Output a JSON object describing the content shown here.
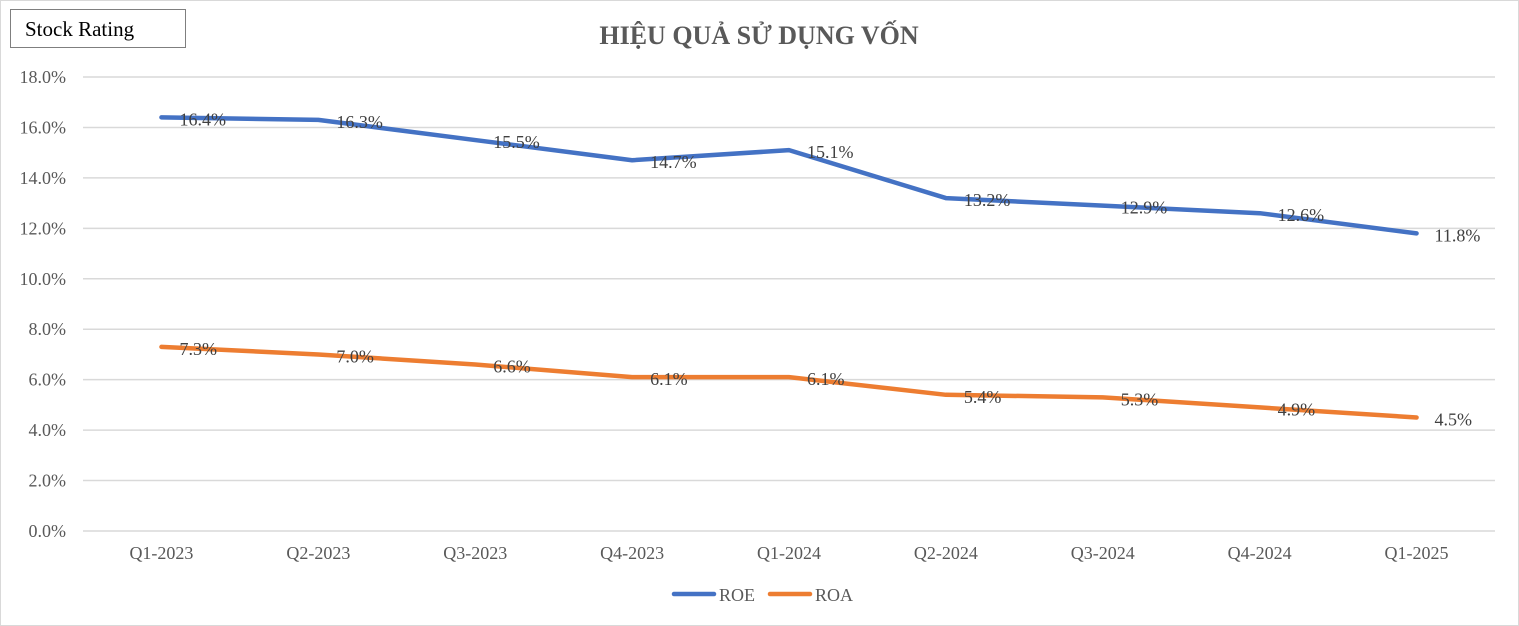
{
  "badge": {
    "label": "Stock Rating"
  },
  "chart_data": {
    "type": "line",
    "title": "HIỆU QUẢ SỬ DỤNG VỐN",
    "xlabel": "",
    "ylabel": "",
    "categories": [
      "Q1-2023",
      "Q2-2023",
      "Q3-2023",
      "Q4-2023",
      "Q1-2024",
      "Q2-2024",
      "Q3-2024",
      "Q4-2024",
      "Q1-2025"
    ],
    "ylim": [
      0,
      18
    ],
    "y_ticks": [
      0,
      2,
      4,
      6,
      8,
      10,
      12,
      14,
      16,
      18
    ],
    "y_tick_labels": [
      "0.0%",
      "2.0%",
      "4.0%",
      "6.0%",
      "8.0%",
      "10.0%",
      "12.0%",
      "14.0%",
      "16.0%",
      "18.0%"
    ],
    "grid": true,
    "legend": "bottom",
    "series": [
      {
        "name": "ROE",
        "color": "#4472c4",
        "values": [
          16.4,
          16.3,
          15.5,
          14.7,
          15.1,
          13.2,
          12.9,
          12.6,
          11.8
        ],
        "labels": [
          "16.4%",
          "16.3%",
          "15.5%",
          "14.7%",
          "15.1%",
          "13.2%",
          "12.9%",
          "12.6%",
          "11.8%"
        ]
      },
      {
        "name": "ROA",
        "color": "#ed7d31",
        "values": [
          7.3,
          7.0,
          6.6,
          6.1,
          6.1,
          5.4,
          5.3,
          4.9,
          4.5
        ],
        "labels": [
          "7.3%",
          "7.0%",
          "6.6%",
          "6.1%",
          "6.1%",
          "5.4%",
          "5.3%",
          "4.9%",
          "4.5%"
        ]
      }
    ]
  }
}
